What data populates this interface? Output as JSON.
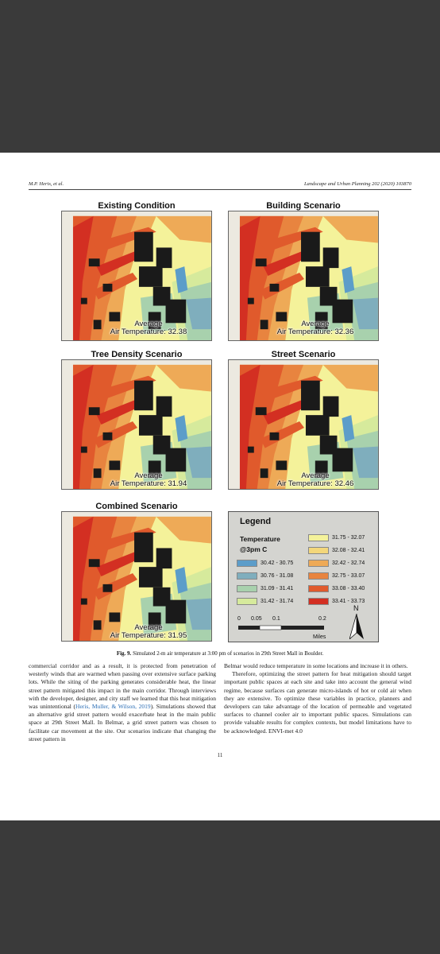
{
  "header": {
    "authors": "M.P. Heris, et al.",
    "journal": "Landscape and Urban Planning 202 (2020) 103870"
  },
  "panels": [
    {
      "title": "Existing Condition",
      "avg_label": "Average",
      "avg_value": "Air Temperature: 32.38"
    },
    {
      "title": "Building Scenario",
      "avg_label": "Average",
      "avg_value": "Air Temperature: 32.36"
    },
    {
      "title": "Tree Density Scenario",
      "avg_label": "Average",
      "avg_value": "Air Temperature: 31.94"
    },
    {
      "title": "Street Scenario",
      "avg_label": "Average",
      "avg_value": "Air Temperature: 32.46"
    },
    {
      "title": "Combined Scenario",
      "avg_label": "Average",
      "avg_value": "Air Temperature: 31.95"
    }
  ],
  "legend": {
    "title": "Legend",
    "subtitle_1": "Temperature",
    "subtitle_2": "@3pm C",
    "items": [
      {
        "range": "30.42 - 30.75",
        "color": "#5c9dc9"
      },
      {
        "range": "30.76 - 31.08",
        "color": "#7faebd"
      },
      {
        "range": "31.09 - 31.41",
        "color": "#a8d1ad"
      },
      {
        "range": "31.42 - 31.74",
        "color": "#d6ea9c"
      },
      {
        "range": "31.75 - 32.07",
        "color": "#f4f29a"
      },
      {
        "range": "32.08 - 32.41",
        "color": "#f3d77b"
      },
      {
        "range": "32.42 - 32.74",
        "color": "#eeaa57"
      },
      {
        "range": "32.75 - 33.07",
        "color": "#e8843f"
      },
      {
        "range": "33.08 - 33.40",
        "color": "#e05a2c"
      },
      {
        "range": "33.41 - 33.73",
        "color": "#d32f22"
      }
    ],
    "scale": [
      "0",
      "0.05",
      "0.1",
      "0.2"
    ],
    "scale_unit": "Miles",
    "north": "N"
  },
  "caption": {
    "label": "Fig. 9.",
    "text": "Simulated 2-m air temperature at 3:00 pm of scenarios in 29th Street Mall in Boulder."
  },
  "body": {
    "left_1": "commercial corridor and as a result, it is protected from penetration of westerly winds that are warmed when passing over extensive surface parking lots. While the siting of the parking generates considerable heat, the linear street pattern mitigated this impact in the main corridor. Through interviews with the developer, designer, and city staff we learned that this heat mitigation was unintentional (",
    "left_cite": "Heris, Muller, & Wilson, 2019",
    "left_2": "). Simulations showed that an alternative grid street pattern would exacerbate heat in the main public space at 29th Street Mall. In Belmar, a grid street pattern was chosen to facilitate car movement at the site. Our scenarios indicate that changing the street pattern in",
    "right_1": "Belmar would reduce temperature in some locations and increase it in others.",
    "right_2": "Therefore, optimizing the street pattern for heat mitigation should target important public spaces at each site and take into account the general wind regime, because surfaces can generate micro-islands of hot or cold air when they are extensive. To optimize these variables in practice, planners and developers can take advantage of the location of permeable and vegetated surfaces to channel cooler air to important public spaces. Simulations can provide valuable results for complex contexts, but model limitations have to be acknowledged. ENVI-met 4.0"
  },
  "page_number": "11"
}
